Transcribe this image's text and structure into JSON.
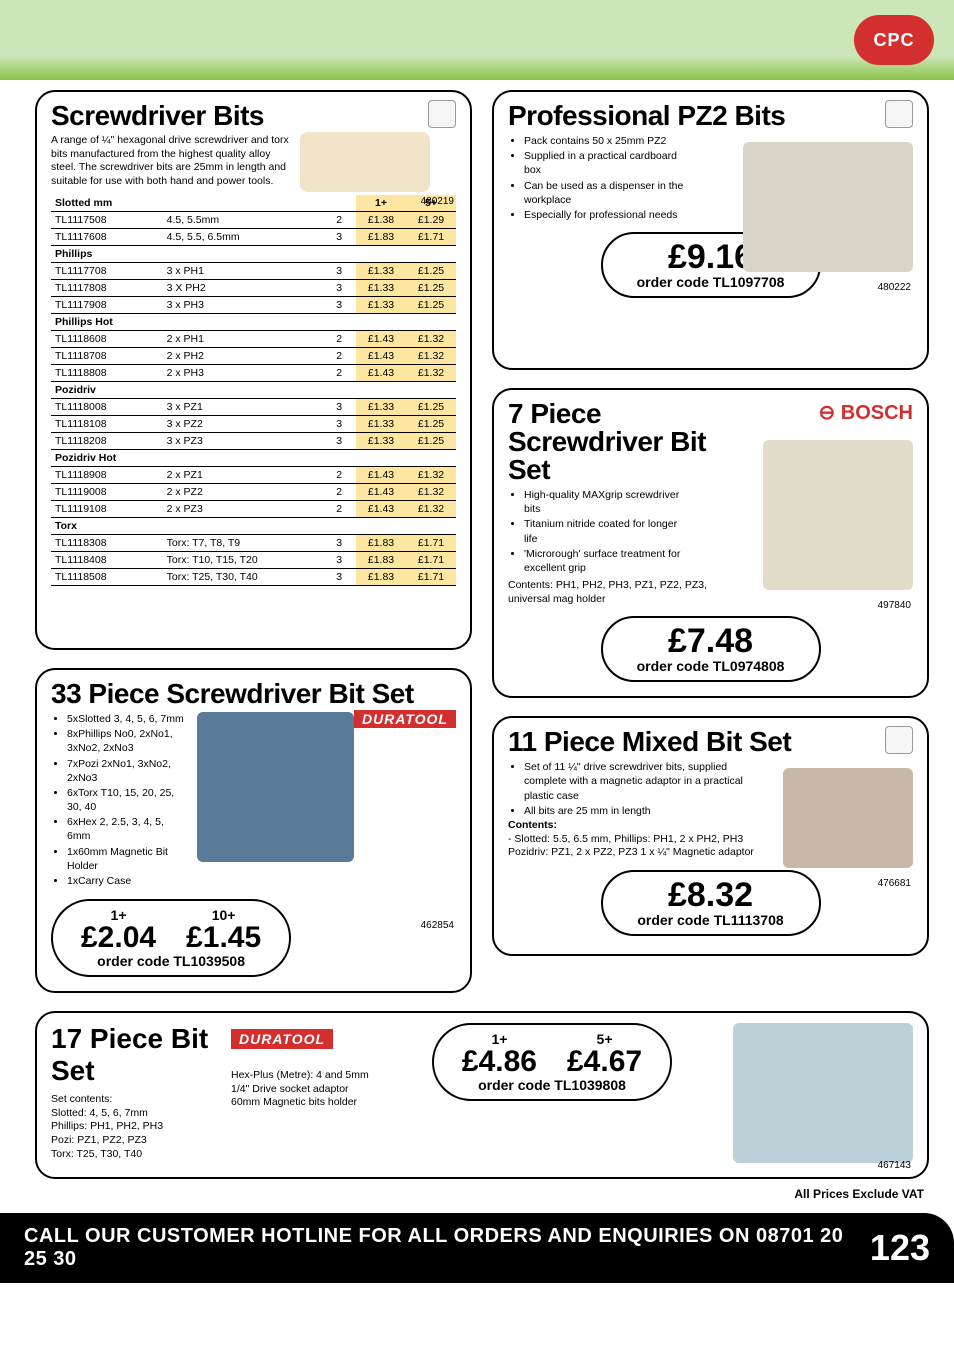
{
  "header": {
    "logo_text": "CPC"
  },
  "screwdriver_bits": {
    "title": "Screwdriver Bits",
    "intro": "A range of ¼\" hexagonal drive screwdriver and torx bits manufactured from the highest quality alloy steel. The screwdriver bits are 25mm in length and suitable for use with both hand and power tools.",
    "sku": "480219",
    "price_headers": {
      "qty1": "1+",
      "qty5": "5+"
    },
    "sections": [
      {
        "name": "Slotted mm",
        "rows": [
          {
            "code": "TL1117508",
            "desc": "4.5, 5.5mm",
            "pack": "2",
            "p1": "£1.38",
            "p5": "£1.29"
          },
          {
            "code": "TL1117608",
            "desc": "4.5, 5.5, 6.5mm",
            "pack": "3",
            "p1": "£1.83",
            "p5": "£1.71"
          }
        ]
      },
      {
        "name": "Phillips",
        "rows": [
          {
            "code": "TL1117708",
            "desc": "3 x PH1",
            "pack": "3",
            "p1": "£1.33",
            "p5": "£1.25"
          },
          {
            "code": "TL1117808",
            "desc": "3 X PH2",
            "pack": "3",
            "p1": "£1.33",
            "p5": "£1.25"
          },
          {
            "code": "TL1117908",
            "desc": "3 x PH3",
            "pack": "3",
            "p1": "£1.33",
            "p5": "£1.25"
          }
        ]
      },
      {
        "name": "Phillips Hot",
        "rows": [
          {
            "code": "TL1118608",
            "desc": "2 x PH1",
            "pack": "2",
            "p1": "£1.43",
            "p5": "£1.32"
          },
          {
            "code": "TL1118708",
            "desc": "2 x PH2",
            "pack": "2",
            "p1": "£1.43",
            "p5": "£1.32"
          },
          {
            "code": "TL1118808",
            "desc": "2 x PH3",
            "pack": "2",
            "p1": "£1.43",
            "p5": "£1.32"
          }
        ]
      },
      {
        "name": "Pozidriv",
        "rows": [
          {
            "code": "TL1118008",
            "desc": "3  x PZ1",
            "pack": "3",
            "p1": "£1.33",
            "p5": "£1.25"
          },
          {
            "code": "TL1118108",
            "desc": "3 x PZ2",
            "pack": "3",
            "p1": "£1.33",
            "p5": "£1.25"
          },
          {
            "code": "TL1118208",
            "desc": "3 x PZ3",
            "pack": "3",
            "p1": "£1.33",
            "p5": "£1.25"
          }
        ]
      },
      {
        "name": "Pozidriv Hot",
        "rows": [
          {
            "code": "TL1118908",
            "desc": "2 x PZ1",
            "pack": "2",
            "p1": "£1.43",
            "p5": "£1.32"
          },
          {
            "code": "TL1119008",
            "desc": "2 x PZ2",
            "pack": "2",
            "p1": "£1.43",
            "p5": "£1.32"
          },
          {
            "code": "TL1119108",
            "desc": "2 x PZ3",
            "pack": "2",
            "p1": "£1.43",
            "p5": "£1.32"
          }
        ]
      },
      {
        "name": "Torx",
        "rows": [
          {
            "code": "TL1118308",
            "desc": "Torx: T7, T8, T9",
            "pack": "3",
            "p1": "£1.83",
            "p5": "£1.71"
          },
          {
            "code": "TL1118408",
            "desc": "Torx: T10, T15, T20",
            "pack": "3",
            "p1": "£1.83",
            "p5": "£1.71"
          },
          {
            "code": "TL1118508",
            "desc": "Torx: T25, T30, T40",
            "pack": "3",
            "p1": "£1.83",
            "p5": "£1.71"
          }
        ]
      }
    ]
  },
  "set33": {
    "title": "33 Piece Screwdriver Bit Set",
    "brand": "DURATOOL",
    "bullets": [
      "5xSlotted 3, 4, 5, 6, 7mm",
      "8xPhillips No0, 2xNo1, 3xNo2, 2xNo3",
      "7xPozi 2xNo1, 3xNo2, 2xNo3",
      "6xTorx T10, 15, 20, 25, 30, 40",
      "6xHex 2, 2.5, 3, 4, 5, 6mm",
      "1x60mm Magnetic Bit Holder",
      "1xCarry Case"
    ],
    "sku": "462854",
    "tiers": [
      {
        "qty": "1+",
        "price": "£2.04"
      },
      {
        "qty": "10+",
        "price": "£1.45"
      }
    ],
    "order": "order code TL1039508"
  },
  "pz2": {
    "title": "Professional PZ2 Bits",
    "bullets": [
      "Pack contains 50 x 25mm PZ2",
      "Supplied in a practical cardboard box",
      "Can be used as a dispenser in the workplace",
      "Especially for professional needs"
    ],
    "sku": "480222",
    "price": "£9.16",
    "order": "order code TL1097708"
  },
  "bosch7": {
    "title": "7 Piece Screwdriver Bit Set",
    "brand": "BOSCH",
    "bullets": [
      "High-quality MAXgrip screwdriver bits",
      "Titanium nitride coated for longer life",
      "'Microrough' surface treatment for excellent grip"
    ],
    "contents": "Contents: PH1, PH2, PH3, PZ1, PZ2, PZ3, universal mag holder",
    "sku": "497840",
    "price": "£7.48",
    "order": "order code TL0974808"
  },
  "mixed11": {
    "title": "11 Piece Mixed Bit Set",
    "bullets": [
      "Set of 11 ¼\" drive screwdriver bits, supplied complete with a magnetic adaptor in a practical plastic case",
      "All bits are 25 mm in length"
    ],
    "contents_label": "Contents:",
    "contents": "- Slotted: 5.5, 6.5 mm, Phillips: PH1, 2 x PH2, PH3 Pozidriv: PZ1, 2 x PZ2, PZ3 1 x ¼\" Magnetic adaptor",
    "sku": "476681",
    "price": "£8.32",
    "order": "order code TL1113708"
  },
  "set17": {
    "title": "17 Piece Bit Set",
    "brand": "DURATOOL",
    "col1_label": "Set contents:",
    "col1_text": "Slotted: 4, 5, 6, 7mm\nPhillips: PH1, PH2, PH3\nPozi: PZ1, PZ2, PZ3\nTorx: T25, T30, T40",
    "col2_text": "Hex-Plus (Metre): 4 and 5mm\n1/4\" Drive socket adaptor\n60mm Magnetic bits holder",
    "sku": "467143",
    "tiers": [
      {
        "qty": "1+",
        "price": "£4.86"
      },
      {
        "qty": "5+",
        "price": "£4.67"
      }
    ],
    "order": "order code TL1039808"
  },
  "vat_note": "All Prices Exclude VAT",
  "footer": {
    "msg": "CALL OUR CUSTOMER HOTLINE FOR ALL ORDERS AND ENQUIRIES ON 08701 20 25 30",
    "page": "123"
  }
}
